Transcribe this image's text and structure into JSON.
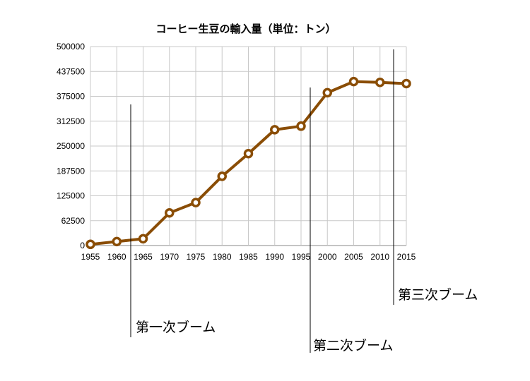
{
  "chart_data": {
    "type": "line",
    "title": "コーヒー生豆の輸入量（単位：トン）",
    "xlabel": "",
    "ylabel": "",
    "x": [
      1955,
      1960,
      1965,
      1970,
      1975,
      1980,
      1985,
      1990,
      1995,
      2000,
      2005,
      2010,
      2015
    ],
    "x_tick_labels": [
      "1955",
      "1960",
      "1965",
      "1970",
      "1975",
      "1980",
      "1985",
      "1990",
      "1995",
      "2000",
      "2005",
      "2010",
      "2015"
    ],
    "y_tick_values": [
      0,
      62500,
      125000,
      187500,
      250000,
      312500,
      375000,
      437500,
      500000
    ],
    "y_tick_labels": [
      "0",
      "62500",
      "125000",
      "187500",
      "250000",
      "312500",
      "375000",
      "437500",
      "500000"
    ],
    "ylim": [
      0,
      500000
    ],
    "xlim": [
      1955,
      2015
    ],
    "grid": true,
    "legend": "none",
    "series": [
      {
        "values": [
          3000,
          10000,
          17000,
          82000,
          108000,
          174000,
          231000,
          291000,
          300000,
          384000,
          412000,
          410000,
          407000
        ]
      }
    ],
    "annotations": [
      {
        "label": "第一次ブーム",
        "x": 1963
      },
      {
        "label": "第二次ブーム",
        "x": 1996
      },
      {
        "label": "第三次ブーム",
        "x": 2014
      }
    ],
    "colors": {
      "series": "#8a4d05",
      "grid": "#c8c8c8"
    }
  }
}
